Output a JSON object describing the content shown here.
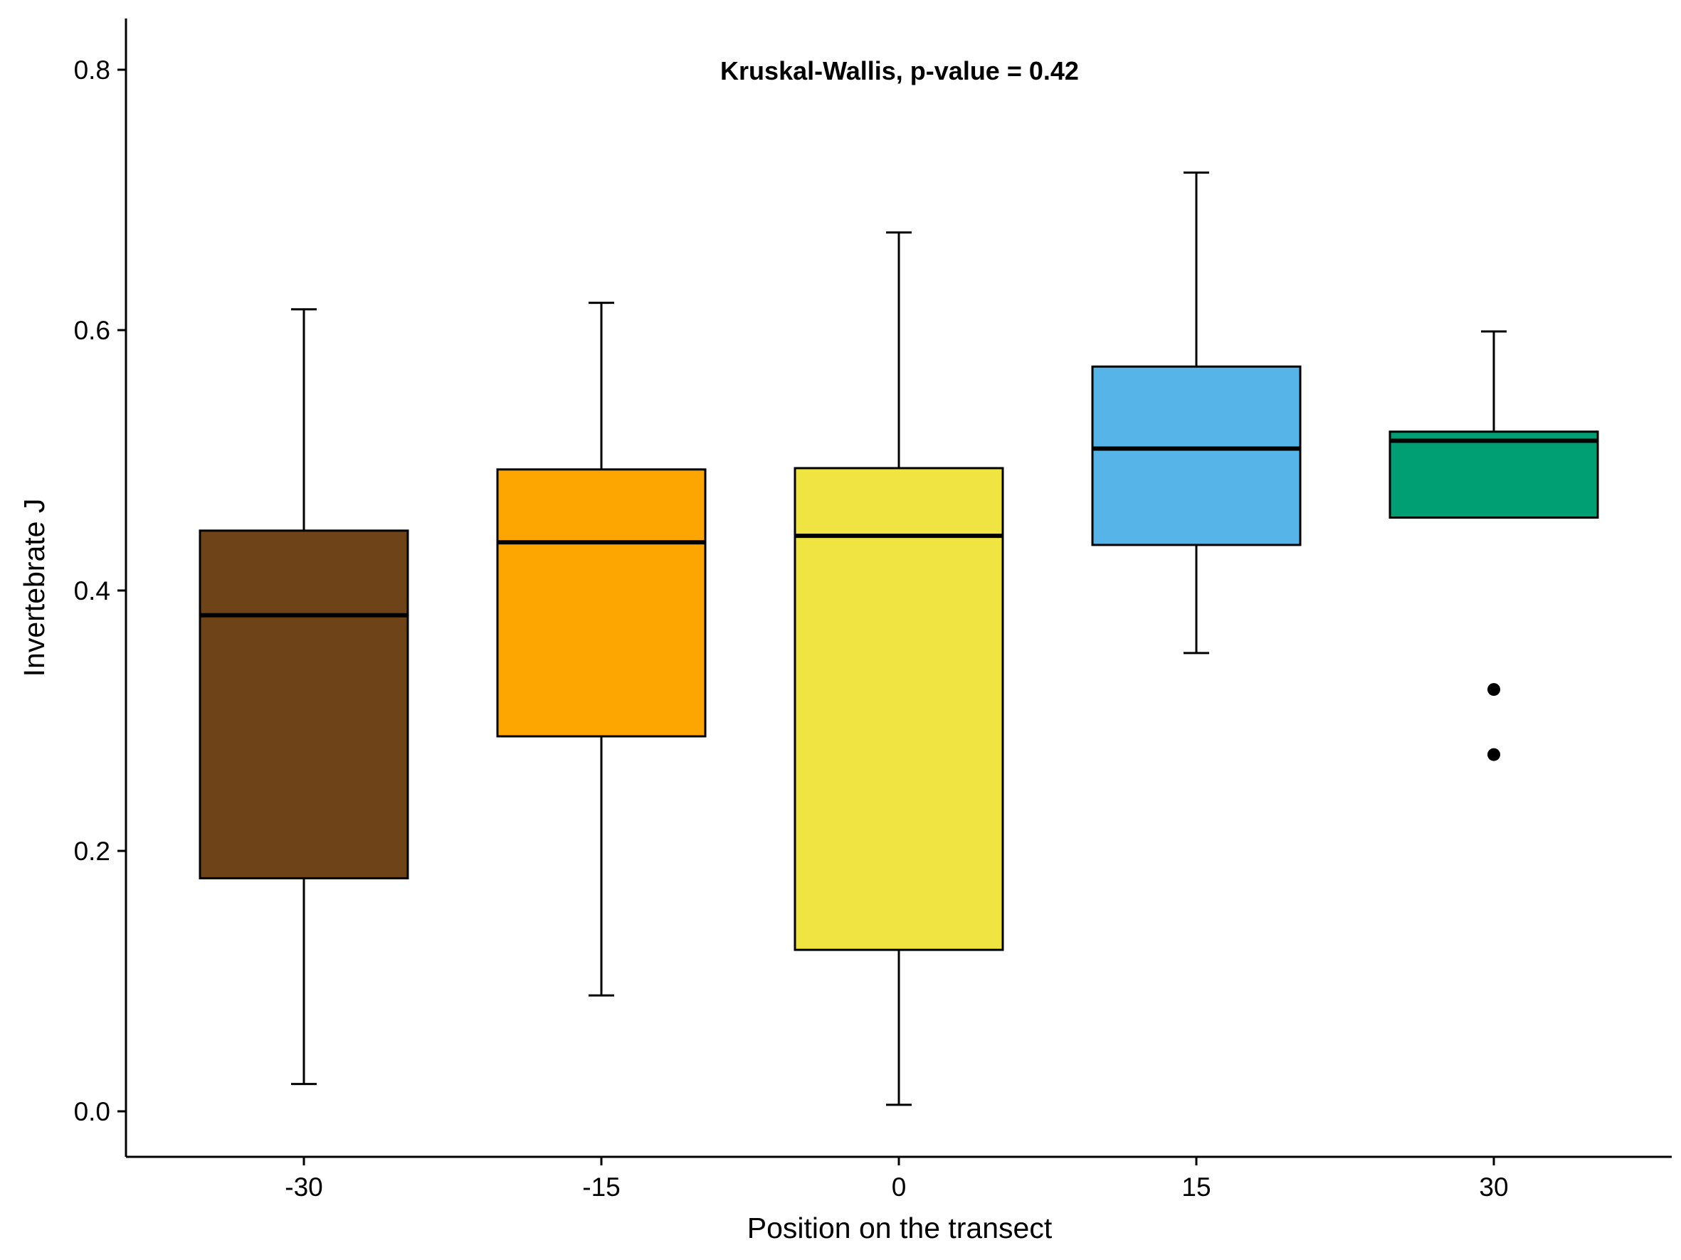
{
  "chart_data": {
    "type": "boxplot",
    "annotation": "Kruskal-Wallis, p-value = 0.42",
    "xlabel": "Position on the transect",
    "ylabel": "Invertebrate J",
    "ylim": [
      -0.03,
      0.84
    ],
    "yticks": [
      "0.0",
      "0.2",
      "0.4",
      "0.6",
      "0.8"
    ],
    "ytick_values": [
      0.0,
      0.2,
      0.4,
      0.6,
      0.8
    ],
    "grid": false,
    "legend": "none",
    "categories": [
      "-30",
      "-15",
      "0",
      "15",
      "30"
    ],
    "boxes": [
      {
        "category": "-30",
        "color": "#6E4318",
        "whisker_low": 0.021,
        "q1": 0.179,
        "median": 0.381,
        "q3": 0.446,
        "whisker_high": 0.616,
        "outliers": []
      },
      {
        "category": "-15",
        "color": "#FDA500",
        "whisker_low": 0.089,
        "q1": 0.288,
        "median": 0.437,
        "q3": 0.493,
        "whisker_high": 0.621,
        "outliers": []
      },
      {
        "category": "0",
        "color": "#F0E442",
        "whisker_low": 0.005,
        "q1": 0.124,
        "median": 0.442,
        "q3": 0.494,
        "whisker_high": 0.675,
        "outliers": []
      },
      {
        "category": "15",
        "color": "#56B4E9",
        "whisker_low": 0.352,
        "q1": 0.435,
        "median": 0.509,
        "q3": 0.572,
        "whisker_high": 0.721,
        "outliers": []
      },
      {
        "category": "30",
        "color": "#009E73",
        "whisker_low": 0.456,
        "q1": 0.456,
        "median": 0.515,
        "q3": 0.522,
        "whisker_high": 0.599,
        "outliers": [
          0.324,
          0.274
        ]
      }
    ]
  }
}
